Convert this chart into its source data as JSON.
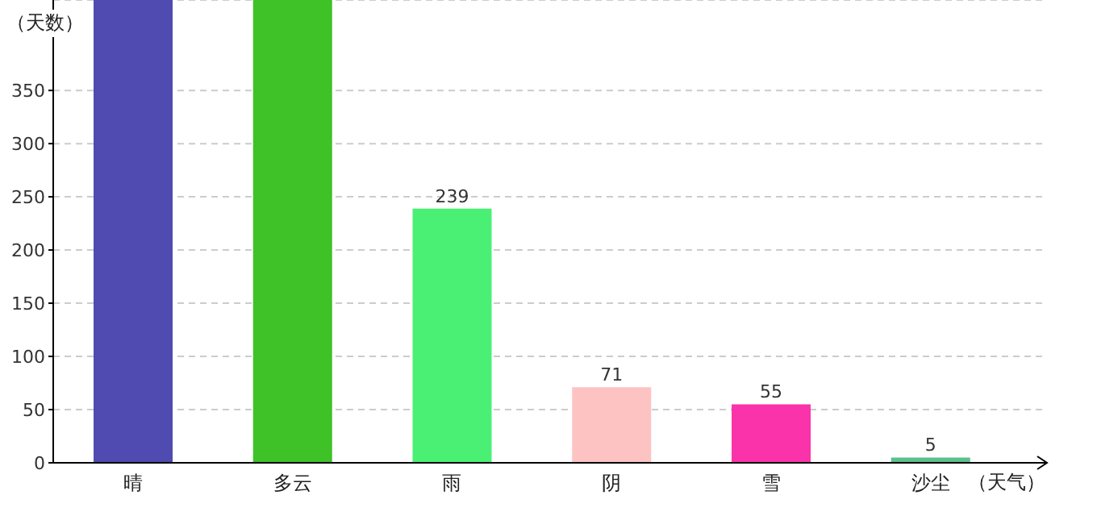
{
  "chart_data": {
    "type": "bar",
    "ylabel": "（天数）",
    "xlabel": "（天气）",
    "categories": [
      "晴",
      "多云",
      "雨",
      "阴",
      "雪",
      "沙尘"
    ],
    "values": [
      435,
      435,
      239,
      71,
      55,
      5
    ],
    "colors": [
      "#4f4bb0",
      "#3fc227",
      "#4af074",
      "#fdc3c3",
      "#fb33aa",
      "#5cc08a"
    ],
    "value_labels": [
      null,
      null,
      "239",
      "71",
      "55",
      "5"
    ],
    "ylim": [
      0,
      435
    ],
    "yticks": [
      0,
      50,
      100,
      150,
      200,
      250,
      300,
      350
    ],
    "grid": "y",
    "legend": false
  }
}
